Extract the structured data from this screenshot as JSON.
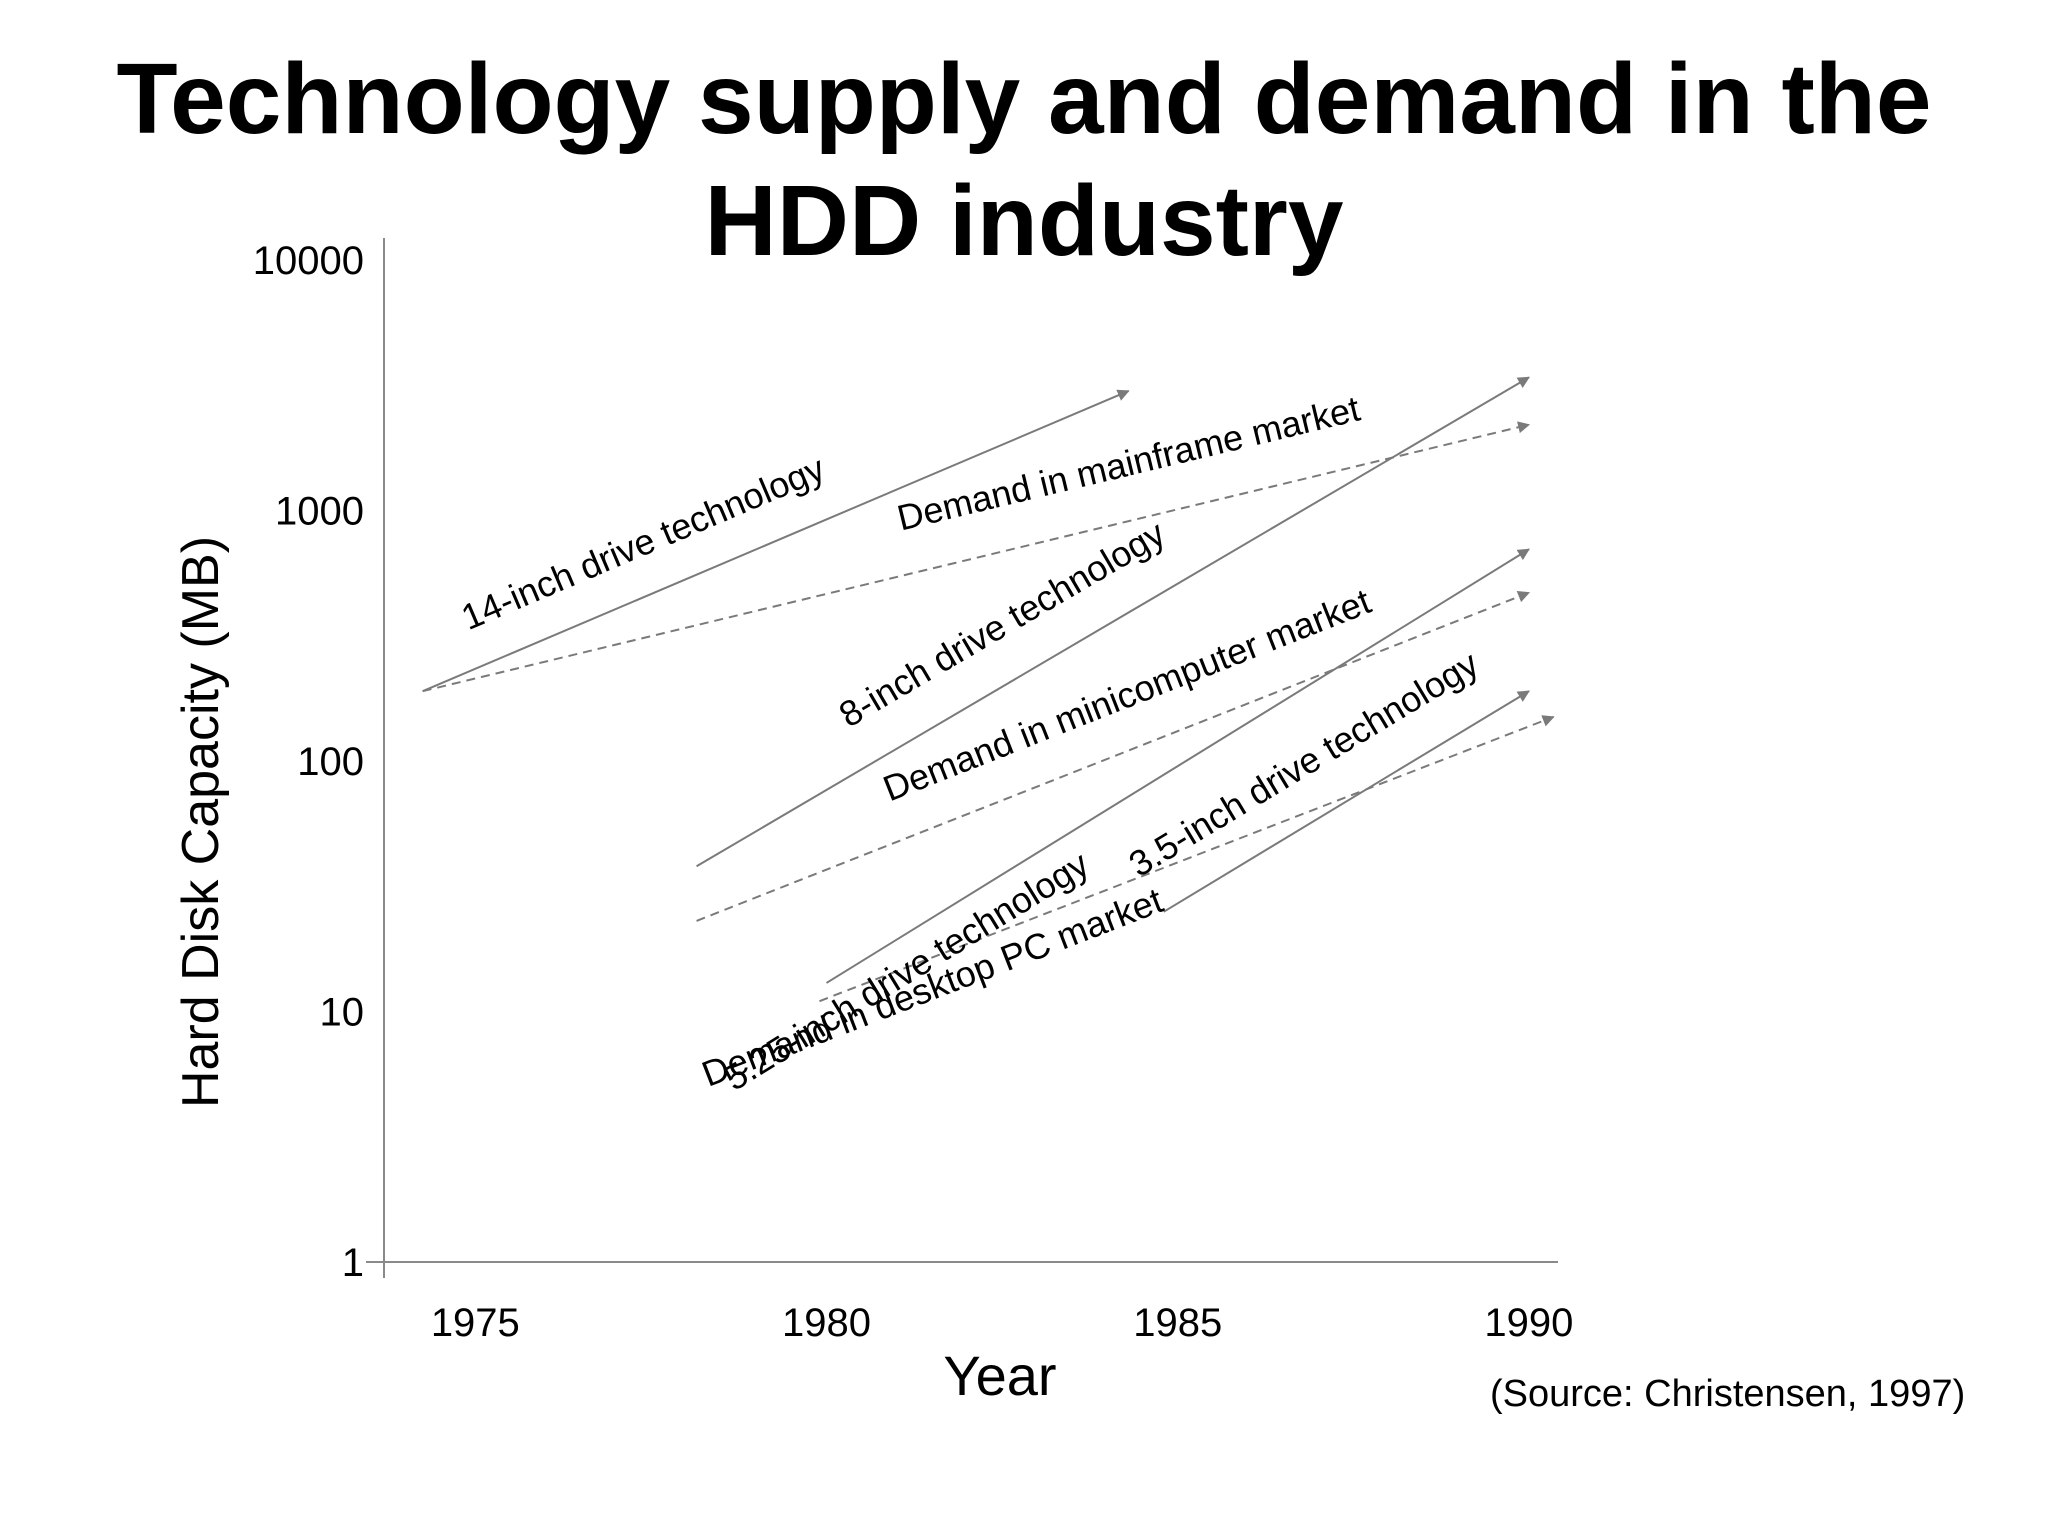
{
  "title_lines": [
    "Technology supply and demand in the",
    "HDD industry"
  ],
  "source": "(Source: Christensen, 1997)",
  "chart_data": {
    "type": "line",
    "title": "Technology supply and demand in the HDD industry",
    "xlabel": "Year",
    "ylabel": "Hard Disk Capacity (MB)",
    "xlim": [
      1973.7,
      1990.4
    ],
    "ylim": [
      1,
      10000
    ],
    "y_scale": "log",
    "x_ticks": [
      "1975",
      "1980",
      "1985",
      "1990"
    ],
    "y_ticks": [
      "1",
      "10",
      "100",
      "1000",
      "10000"
    ],
    "grid": false,
    "legend": "none",
    "series": [
      {
        "name": "14-inch drive technology",
        "style": "solid",
        "x": [
          1974.25,
          1984.3
        ],
        "y": [
          190,
          3000
        ]
      },
      {
        "name": "Demand in mainframe market",
        "style": "dashed",
        "x": [
          1974.25,
          1990.0
        ],
        "y": [
          190,
          2200
        ]
      },
      {
        "name": "8-inch drive technology",
        "style": "solid",
        "x": [
          1978.15,
          1990.0
        ],
        "y": [
          38,
          3400
        ]
      },
      {
        "name": "Demand in minicomputer market",
        "style": "dashed",
        "x": [
          1978.15,
          1990.0
        ],
        "y": [
          23,
          470
        ]
      },
      {
        "name": "5.25-inch drive technology",
        "style": "solid",
        "x": [
          1980.0,
          1990.0
        ],
        "y": [
          13,
          700
        ]
      },
      {
        "name": "Demand in desktop PC market",
        "style": "dashed",
        "x": [
          1979.9,
          1990.35
        ],
        "y": [
          11,
          150
        ]
      },
      {
        "name": "3.5-inch drive technology",
        "style": "solid",
        "x": [
          1984.8,
          1990.0
        ],
        "y": [
          25,
          190
        ]
      }
    ],
    "line_color": "#7a7a7a"
  }
}
